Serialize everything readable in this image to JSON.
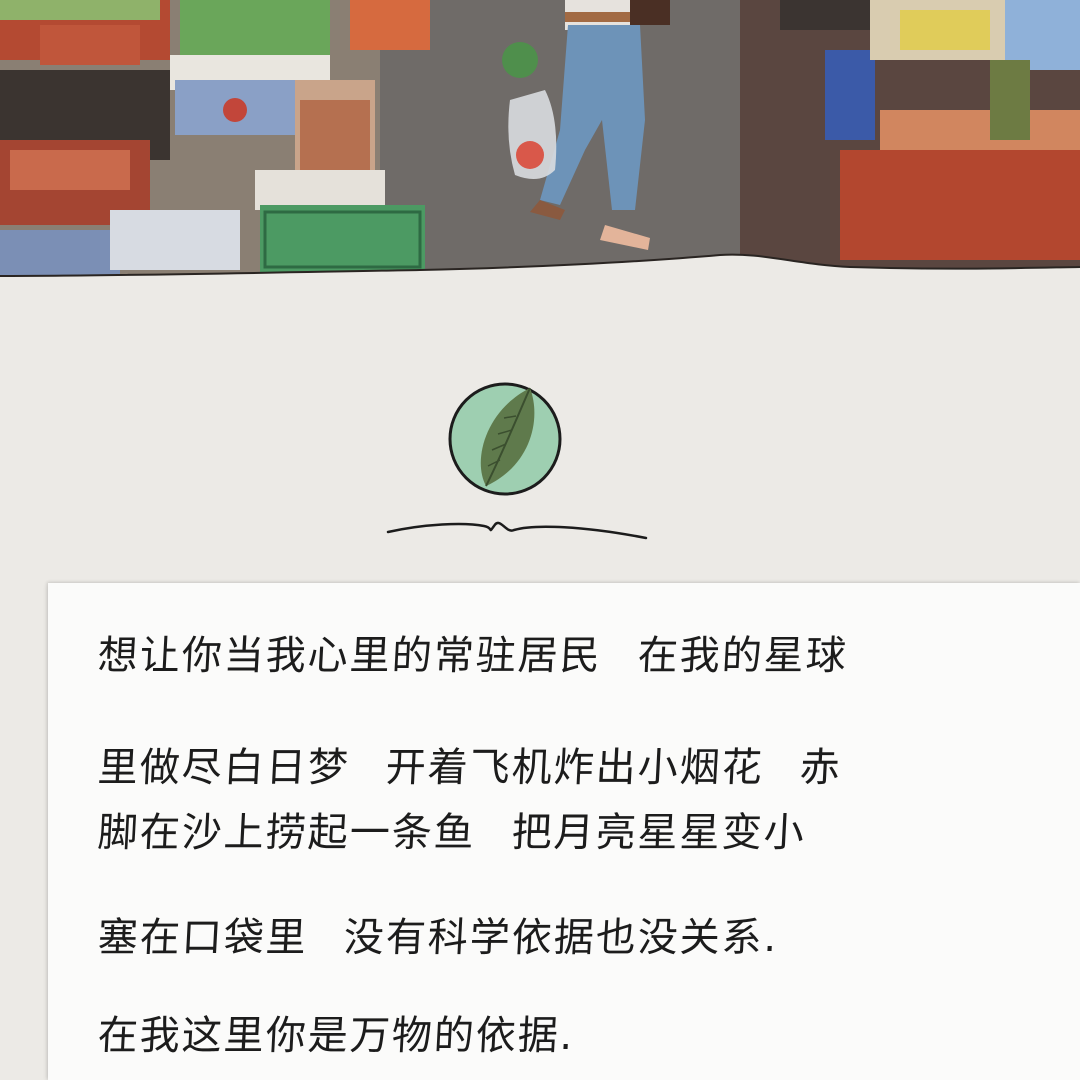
{
  "note": {
    "lines": [
      [
        "想让你当我心里的常驻居民",
        "在我的星球"
      ],
      [
        "里做尽白日梦",
        "开着飞机炸出小烟花",
        "赤"
      ],
      [
        "脚在沙上捞起一条鱼",
        "把月亮星星变小"
      ],
      [
        "塞在口袋里",
        "没有科学依据也没关系."
      ],
      [
        "在我这里你是万物的依据."
      ]
    ]
  },
  "icons": {
    "emblem": "leaf-icon",
    "divider": "wavy-line"
  },
  "colors": {
    "paper": "#eceae6",
    "card": "#fbfbfa",
    "emblem_fill": "#9ecfb1",
    "leaf": "#5f7a4c",
    "ink": "#1c1c1c"
  }
}
